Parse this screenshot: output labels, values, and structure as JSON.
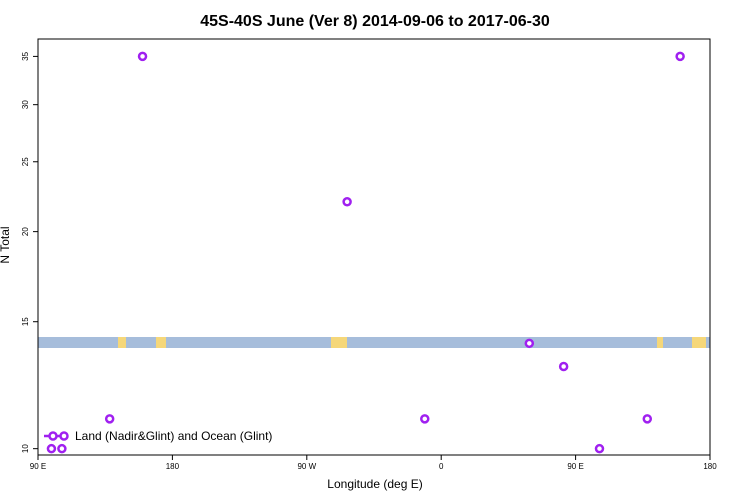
{
  "chart_data": {
    "type": "scatter",
    "title": "45S-40S June (Ver 8)   2014-09-06 to 2017-06-30",
    "xlabel": "Longitude (deg E)",
    "ylabel": "N Total",
    "x_axis_label_order": [
      "90 E",
      "180",
      "90 W",
      "0",
      "90 E",
      "180"
    ],
    "y_scale": "log",
    "ylim": [
      9.8,
      37
    ],
    "x_ticks": [
      {
        "label": "90 E",
        "lon": 90
      },
      {
        "label": "180",
        "lon": 180
      },
      {
        "label": "90 W",
        "lon": 270
      },
      {
        "label": "0",
        "lon": 360
      },
      {
        "label": "90 E",
        "lon": 450
      },
      {
        "label": "180",
        "lon": 540
      }
    ],
    "y_ticks": [
      10,
      15,
      20,
      25,
      30,
      35
    ],
    "series": [
      {
        "name": "Land (Nadir&Glint) and Ocean (Glint)",
        "color": "#a020f0",
        "marker": "open-circle",
        "points": [
          {
            "x": 99,
            "y": 10
          },
          {
            "x": 106,
            "y": 10
          },
          {
            "x": 138,
            "y": 11
          },
          {
            "x": 160,
            "y": 35
          },
          {
            "x": 297,
            "y": 22
          },
          {
            "x": 349,
            "y": 11
          },
          {
            "x": 419,
            "y": 14
          },
          {
            "x": 442,
            "y": 13
          },
          {
            "x": 466,
            "y": 10
          },
          {
            "x": 498,
            "y": 11
          },
          {
            "x": 520,
            "y": 35
          }
        ]
      }
    ],
    "map_strip": {
      "ocean_color": "#a6bddb",
      "land_color": "#f5d77a"
    },
    "legend_position": "bottom-left",
    "grid": false
  }
}
